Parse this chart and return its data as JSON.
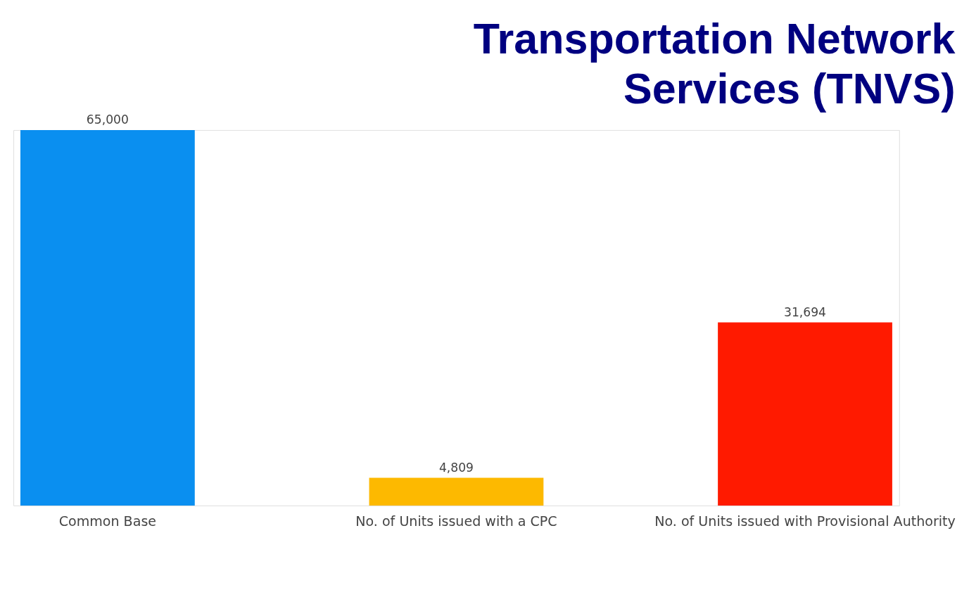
{
  "chart_data": {
    "type": "bar",
    "title": "Transportation Network Services (TNVS)",
    "categories": [
      "Common Base",
      "No. of Units issued with a CPC",
      "No. of Units issued with Provisional Authority"
    ],
    "values": [
      65000,
      4809,
      31694
    ],
    "value_labels": [
      "65,000",
      "4,809",
      "31,694"
    ],
    "colors": [
      "#0a8ff0",
      "#fdb900",
      "#ff1a00"
    ]
  }
}
